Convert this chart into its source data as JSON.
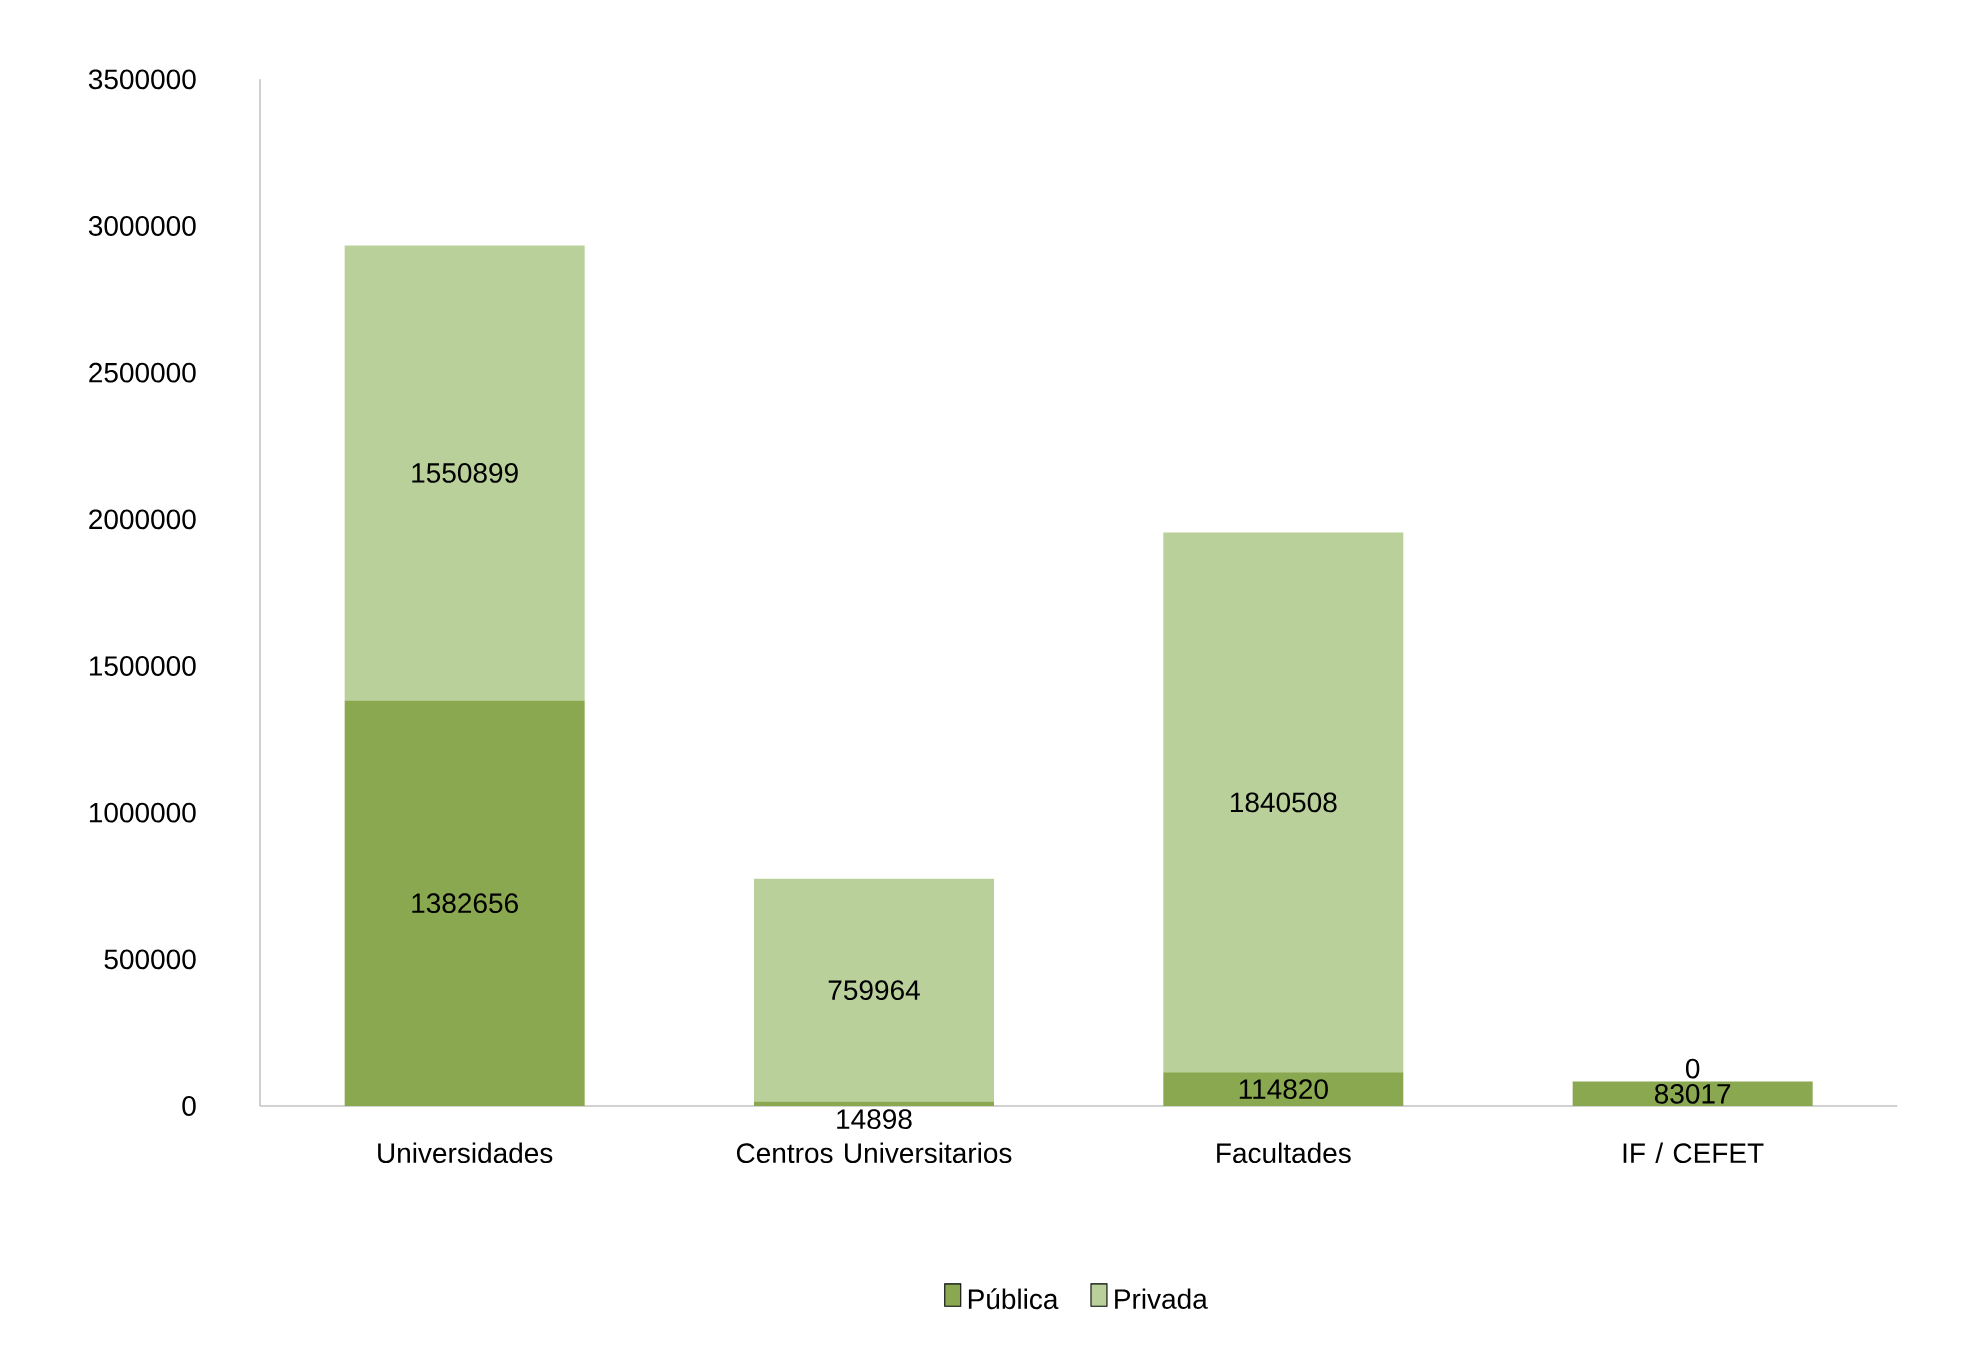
{
  "chart_data": {
    "type": "bar",
    "stacked": true,
    "categories": [
      "Universidades",
      "Centros Universitarios",
      "Facultades",
      "IF / CEFET"
    ],
    "series": [
      {
        "name": "Pública",
        "color": "#8aa84f",
        "values": [
          1382656,
          14898,
          114820,
          83017
        ]
      },
      {
        "name": "Privada",
        "color": "#b9d09a",
        "values": [
          1550899,
          759964,
          1840508,
          0
        ]
      }
    ],
    "ylim": [
      0,
      3500000
    ],
    "yticks": [
      0,
      500000,
      1000000,
      1500000,
      2000000,
      2500000,
      3000000,
      3500000
    ],
    "data_labels": true,
    "legend": "bottom",
    "grid": false
  }
}
